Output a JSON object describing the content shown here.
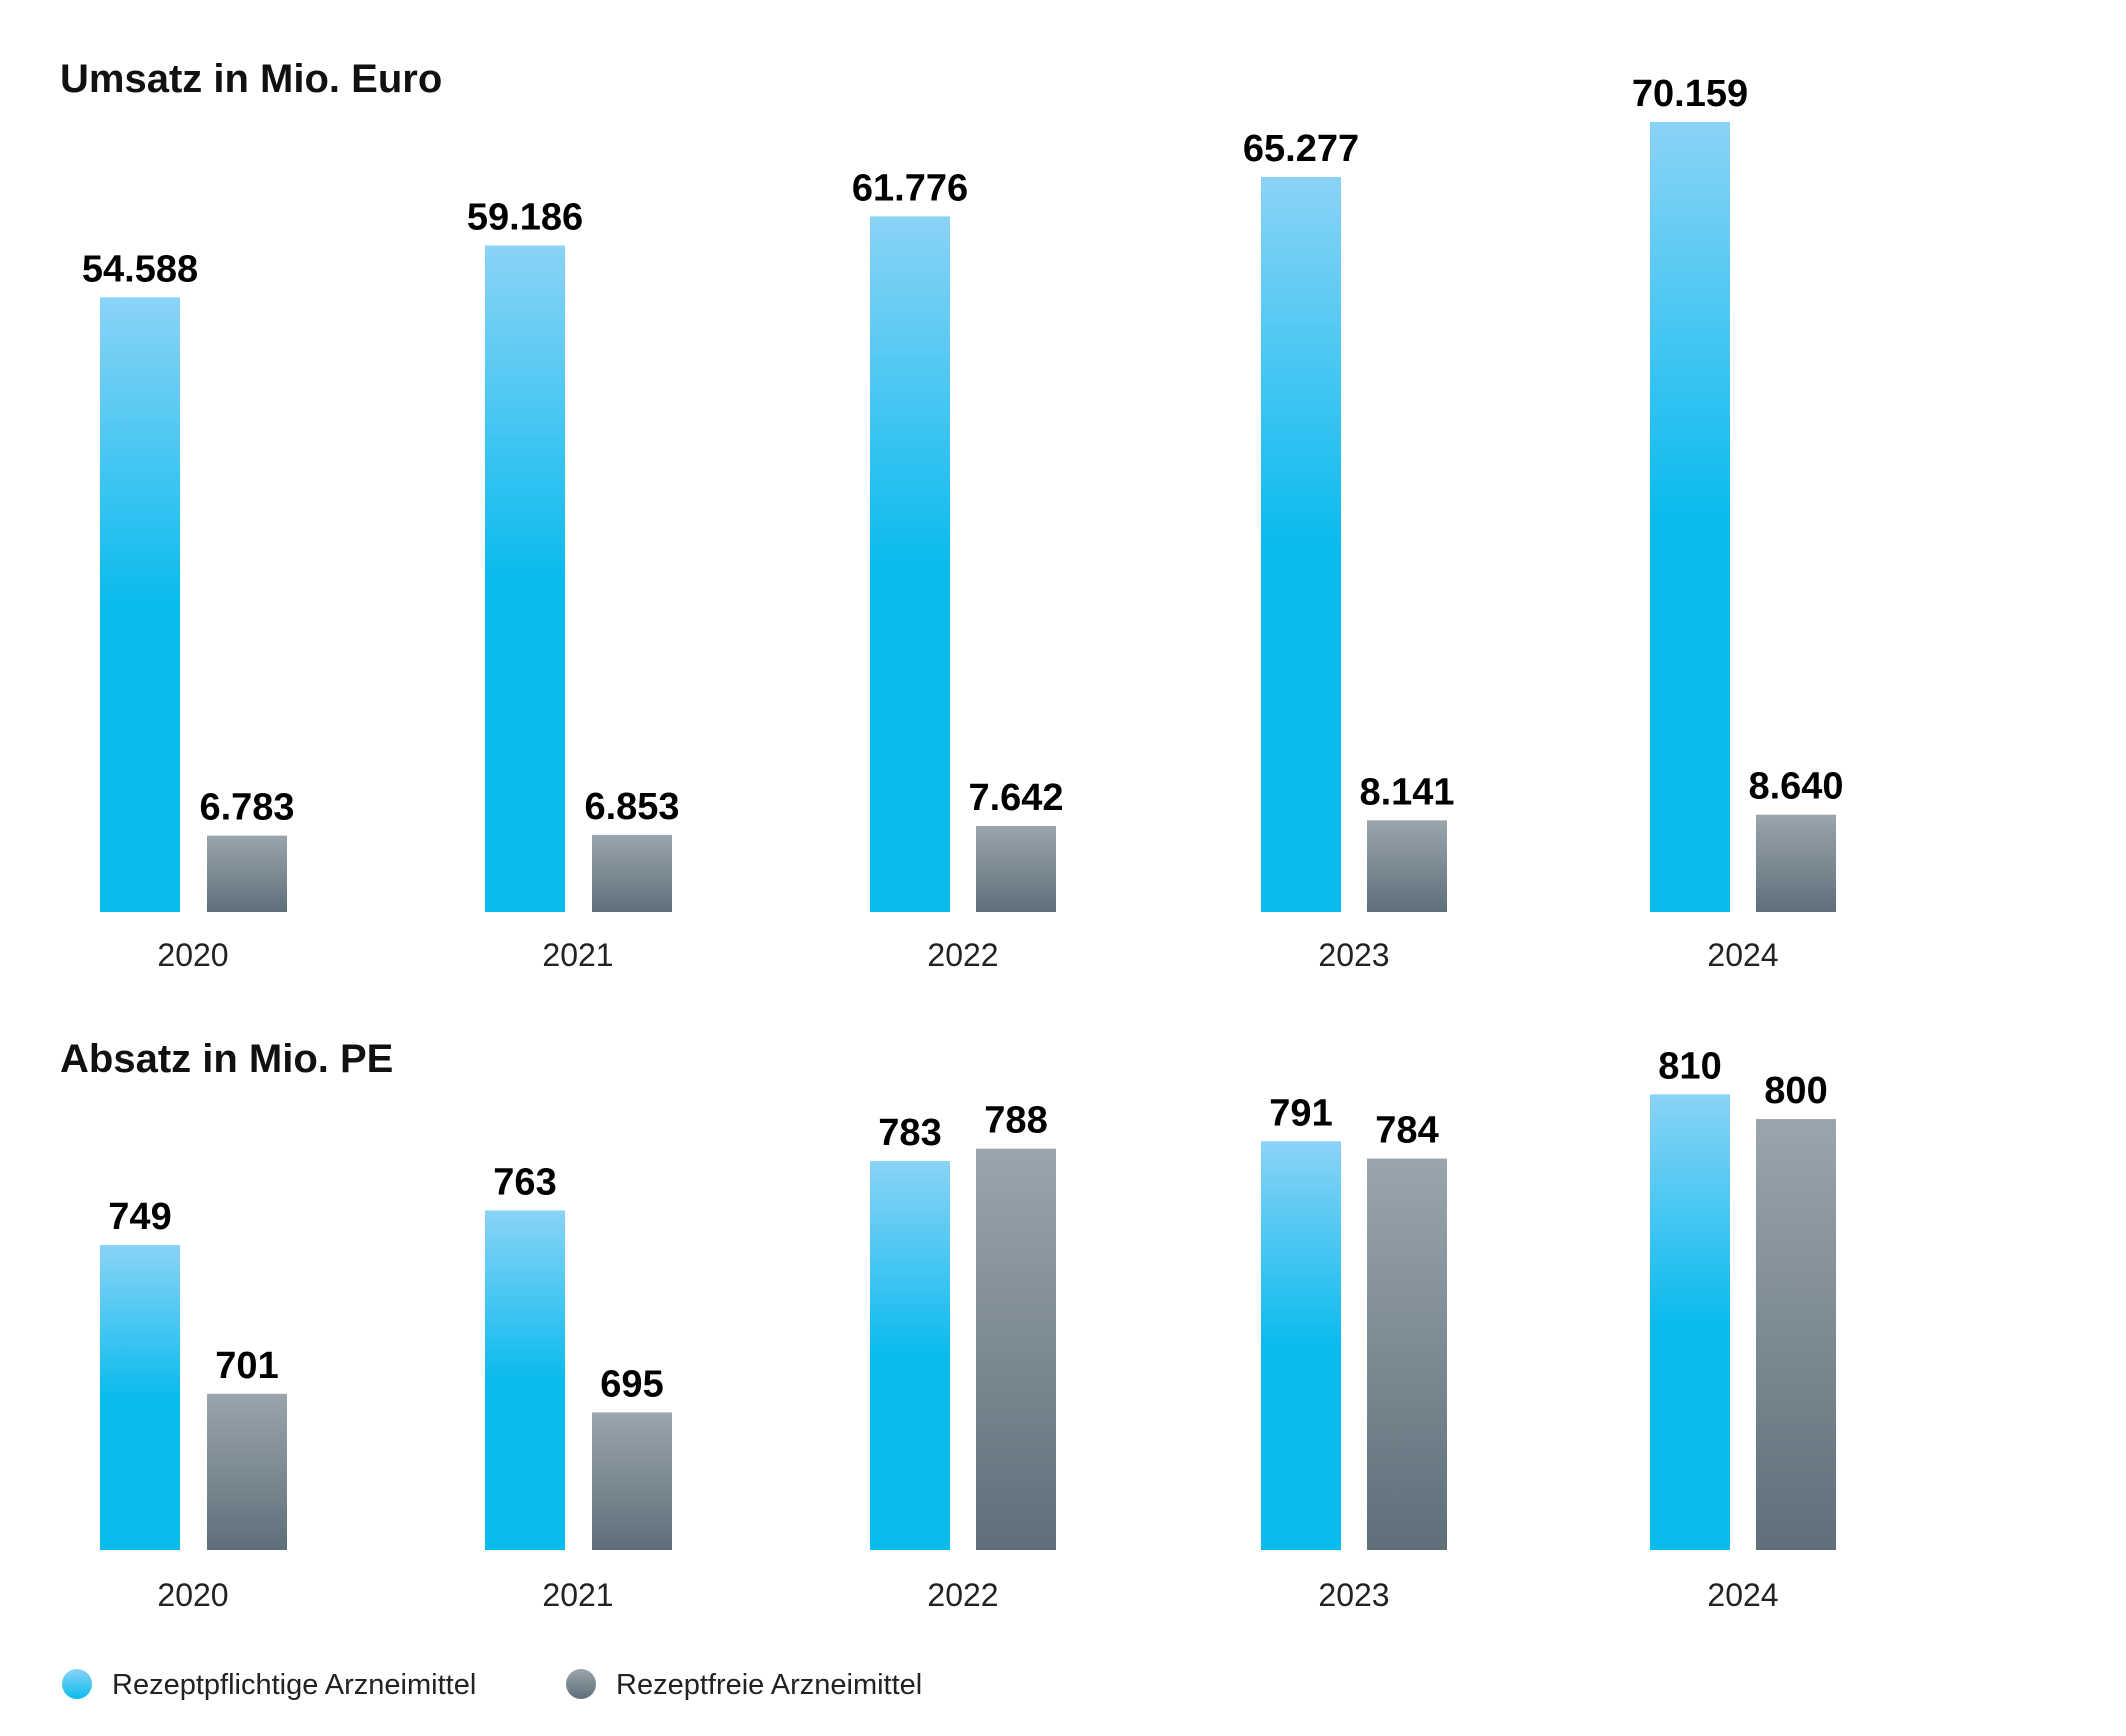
{
  "colors": {
    "rx_top": "#8ad3f6",
    "rx_bottom": "#0abbee",
    "otc_top": "#9aa5ad",
    "otc_bottom": "#5e6f79"
  },
  "legend": {
    "rx": "Rezeptpflichtige Arzneimittel",
    "otc": "Rezeptfreie Arzneimittel"
  },
  "chart_data": [
    {
      "type": "bar",
      "title": "Umsatz in Mio. Euro",
      "categories": [
        "2020",
        "2021",
        "2022",
        "2023",
        "2024"
      ],
      "series": [
        {
          "name": "Rezeptpflichtige Arzneimittel",
          "values": [
            54588,
            59186,
            61776,
            65277,
            70159
          ],
          "labels": [
            "54.588",
            "59.186",
            "61.776",
            "65.277",
            "70.159"
          ]
        },
        {
          "name": "Rezeptfreie Arzneimittel",
          "values": [
            6783,
            6853,
            7642,
            8141,
            8640
          ],
          "labels": [
            "6.783",
            "6.853",
            "7.642",
            "8.141",
            "8.640"
          ]
        }
      ],
      "ylim": [
        0,
        70159
      ],
      "grid": false,
      "legend_position": "bottom-left"
    },
    {
      "type": "bar",
      "title": "Absatz in Mio. PE",
      "categories": [
        "2020",
        "2021",
        "2022",
        "2023",
        "2024"
      ],
      "series": [
        {
          "name": "Rezeptpflichtige Arzneimittel",
          "values": [
            749,
            763,
            783,
            791,
            810
          ],
          "labels": [
            "749",
            "763",
            "783",
            "791",
            "810"
          ]
        },
        {
          "name": "Rezeptfreie Arzneimittel",
          "values": [
            701,
            695,
            788,
            784,
            800
          ],
          "labels": [
            "701",
            "695",
            "788",
            "784",
            "800"
          ]
        }
      ],
      "grid": false,
      "legend_position": "bottom-left"
    }
  ]
}
